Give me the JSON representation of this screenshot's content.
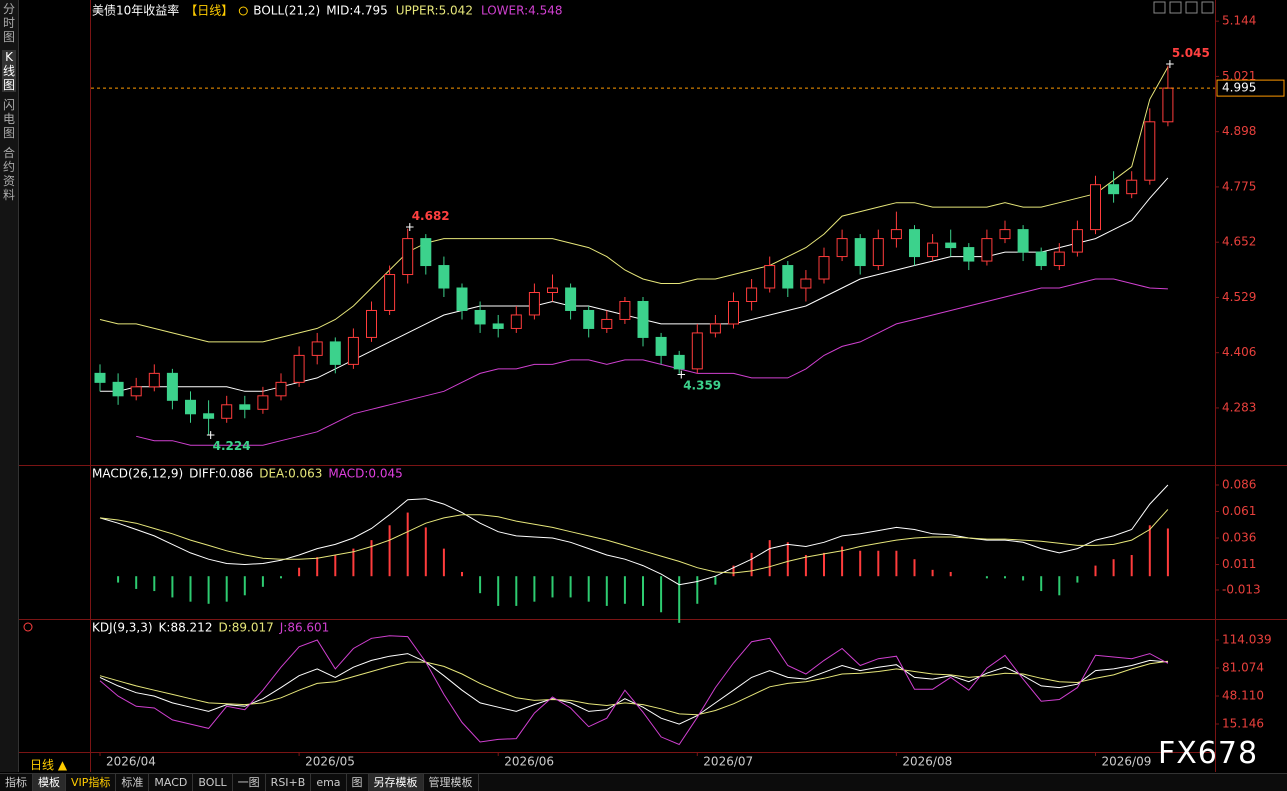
{
  "ui": {
    "sidebar": [
      "分时图",
      "K线图",
      "闪电图",
      "合约资料"
    ],
    "period": "日线 ▲",
    "toolbar": [
      "指标",
      "模板",
      "VIP指标",
      "标准",
      "MACD",
      "BOLL",
      "一图",
      "RSI+B",
      "ema",
      "图",
      "另存模板",
      "管理模板"
    ],
    "watermark": "FX678"
  },
  "chart_data": [
    {
      "type": "candlestick",
      "title": "美债10年收益率",
      "period_label": "【日线】",
      "indicator": "BOLL(21,2)",
      "axis_color": "#e8403c",
      "up_color": "#ff3c3c",
      "down_color": "#3cd28c",
      "ylim": [
        4.156,
        5.18
      ],
      "yticks": [
        5.144,
        5.021,
        4.898,
        4.775,
        4.652,
        4.529,
        4.406,
        4.283
      ],
      "last_price": 4.995,
      "last_price_color": "#ff9900",
      "annotations": [
        5.045,
        4.682,
        4.224,
        4.359
      ],
      "annotation_up_color": "#ff4040",
      "annotation_down_color": "#3cd28c",
      "categories": [
        "2026/04",
        null,
        null,
        null,
        null,
        null,
        null,
        null,
        null,
        null,
        null,
        "2026/05",
        null,
        null,
        null,
        null,
        null,
        null,
        null,
        null,
        null,
        null,
        "2026/06",
        null,
        null,
        null,
        null,
        null,
        null,
        null,
        null,
        null,
        null,
        "2026/07",
        null,
        null,
        null,
        null,
        null,
        null,
        null,
        null,
        null,
        null,
        "2026/08",
        null,
        null,
        null,
        null,
        null,
        null,
        null,
        null,
        null,
        null,
        "2026/09",
        null,
        null,
        null,
        null
      ],
      "ohlc": [
        [
          4.36,
          4.38,
          4.32,
          4.34
        ],
        [
          4.34,
          4.36,
          4.29,
          4.31
        ],
        [
          4.31,
          4.35,
          4.3,
          4.33
        ],
        [
          4.33,
          4.38,
          4.32,
          4.36
        ],
        [
          4.36,
          4.37,
          4.28,
          4.3
        ],
        [
          4.3,
          4.32,
          4.25,
          4.27
        ],
        [
          4.27,
          4.3,
          4.224,
          4.26
        ],
        [
          4.26,
          4.31,
          4.25,
          4.29
        ],
        [
          4.29,
          4.31,
          4.26,
          4.28
        ],
        [
          4.28,
          4.33,
          4.27,
          4.31
        ],
        [
          4.31,
          4.36,
          4.3,
          4.34
        ],
        [
          4.34,
          4.42,
          4.33,
          4.4
        ],
        [
          4.4,
          4.45,
          4.38,
          4.43
        ],
        [
          4.43,
          4.44,
          4.36,
          4.38
        ],
        [
          4.38,
          4.46,
          4.37,
          4.44
        ],
        [
          4.44,
          4.52,
          4.43,
          4.5
        ],
        [
          4.5,
          4.6,
          4.49,
          4.58
        ],
        [
          4.58,
          4.682,
          4.56,
          4.66
        ],
        [
          4.66,
          4.67,
          4.58,
          4.6
        ],
        [
          4.6,
          4.62,
          4.53,
          4.55
        ],
        [
          4.55,
          4.56,
          4.48,
          4.5
        ],
        [
          4.5,
          4.52,
          4.45,
          4.47
        ],
        [
          4.47,
          4.49,
          4.44,
          4.46
        ],
        [
          4.46,
          4.51,
          4.45,
          4.49
        ],
        [
          4.49,
          4.56,
          4.48,
          4.54
        ],
        [
          4.54,
          4.58,
          4.52,
          4.55
        ],
        [
          4.55,
          4.56,
          4.48,
          4.5
        ],
        [
          4.5,
          4.51,
          4.44,
          4.46
        ],
        [
          4.46,
          4.5,
          4.45,
          4.48
        ],
        [
          4.48,
          4.53,
          4.47,
          4.52
        ],
        [
          4.52,
          4.53,
          4.42,
          4.44
        ],
        [
          4.44,
          4.45,
          4.38,
          4.4
        ],
        [
          4.4,
          4.41,
          4.359,
          4.37
        ],
        [
          4.37,
          4.47,
          4.36,
          4.45
        ],
        [
          4.45,
          4.49,
          4.44,
          4.47
        ],
        [
          4.47,
          4.54,
          4.46,
          4.52
        ],
        [
          4.52,
          4.57,
          4.5,
          4.55
        ],
        [
          4.55,
          4.62,
          4.54,
          4.6
        ],
        [
          4.6,
          4.61,
          4.53,
          4.55
        ],
        [
          4.55,
          4.59,
          4.52,
          4.57
        ],
        [
          4.57,
          4.64,
          4.56,
          4.62
        ],
        [
          4.62,
          4.68,
          4.61,
          4.66
        ],
        [
          4.66,
          4.67,
          4.58,
          4.6
        ],
        [
          4.6,
          4.68,
          4.59,
          4.66
        ],
        [
          4.66,
          4.72,
          4.64,
          4.68
        ],
        [
          4.68,
          4.69,
          4.6,
          4.62
        ],
        [
          4.62,
          4.67,
          4.61,
          4.65
        ],
        [
          4.65,
          4.68,
          4.62,
          4.64
        ],
        [
          4.64,
          4.65,
          4.59,
          4.61
        ],
        [
          4.61,
          4.68,
          4.6,
          4.66
        ],
        [
          4.66,
          4.7,
          4.65,
          4.68
        ],
        [
          4.68,
          4.69,
          4.61,
          4.63
        ],
        [
          4.63,
          4.64,
          4.59,
          4.6
        ],
        [
          4.6,
          4.65,
          4.59,
          4.63
        ],
        [
          4.63,
          4.7,
          4.62,
          4.68
        ],
        [
          4.68,
          4.8,
          4.67,
          4.78
        ],
        [
          4.78,
          4.81,
          4.74,
          4.76
        ],
        [
          4.76,
          4.81,
          4.75,
          4.79
        ],
        [
          4.79,
          4.95,
          4.78,
          4.92
        ],
        [
          4.92,
          5.045,
          4.91,
          4.995
        ]
      ],
      "series": [
        {
          "name": "MID:4.795",
          "color": "#ffffff",
          "values": [
            4.32,
            4.32,
            4.33,
            4.33,
            4.33,
            4.33,
            4.33,
            4.33,
            4.32,
            4.32,
            4.33,
            4.34,
            4.35,
            4.37,
            4.39,
            4.41,
            4.43,
            4.45,
            4.47,
            4.49,
            4.5,
            4.51,
            4.51,
            4.51,
            4.51,
            4.52,
            4.51,
            4.51,
            4.5,
            4.49,
            4.48,
            4.47,
            4.47,
            4.47,
            4.47,
            4.47,
            4.48,
            4.49,
            4.5,
            4.51,
            4.53,
            4.55,
            4.57,
            4.58,
            4.59,
            4.6,
            4.61,
            4.62,
            4.62,
            4.62,
            4.63,
            4.63,
            4.63,
            4.64,
            4.65,
            4.66,
            4.68,
            4.7,
            4.75,
            4.795
          ]
        },
        {
          "name": "UPPER:5.042",
          "color": "#e6e67a",
          "values": [
            4.48,
            4.47,
            4.47,
            4.46,
            4.45,
            4.44,
            4.43,
            4.43,
            4.43,
            4.43,
            4.44,
            4.45,
            4.46,
            4.48,
            4.51,
            4.55,
            4.59,
            4.63,
            4.65,
            4.66,
            4.66,
            4.66,
            4.66,
            4.66,
            4.66,
            4.66,
            4.65,
            4.64,
            4.62,
            4.59,
            4.57,
            4.56,
            4.56,
            4.57,
            4.57,
            4.58,
            4.59,
            4.6,
            4.62,
            4.64,
            4.67,
            4.71,
            4.72,
            4.73,
            4.74,
            4.74,
            4.73,
            4.73,
            4.73,
            4.73,
            4.74,
            4.73,
            4.73,
            4.74,
            4.75,
            4.76,
            4.79,
            4.82,
            4.97,
            5.042
          ]
        },
        {
          "name": "LOWER:4.548",
          "color": "#d040d0",
          "values": [
            null,
            null,
            4.22,
            4.21,
            4.21,
            4.2,
            4.2,
            4.2,
            4.2,
            4.2,
            4.21,
            4.22,
            4.23,
            4.25,
            4.27,
            4.28,
            4.29,
            4.3,
            4.31,
            4.32,
            4.34,
            4.36,
            4.37,
            4.37,
            4.38,
            4.38,
            4.39,
            4.39,
            4.38,
            4.39,
            4.39,
            4.38,
            4.37,
            4.36,
            4.36,
            4.36,
            4.35,
            4.35,
            4.35,
            4.37,
            4.4,
            4.42,
            4.43,
            4.45,
            4.47,
            4.48,
            4.49,
            4.5,
            4.51,
            4.52,
            4.53,
            4.54,
            4.55,
            4.55,
            4.56,
            4.57,
            4.57,
            4.56,
            4.55,
            4.548
          ]
        }
      ]
    },
    {
      "type": "indicator",
      "title": "MACD(26,12,9)",
      "axis_color": "#e8403c",
      "ylim": [
        -0.0394,
        0.1039
      ],
      "yticks": [
        0.086,
        0.061,
        0.036,
        0.011,
        -0.013
      ],
      "series": [
        {
          "name": "DIFF:0.086",
          "color": "#ffffff",
          "values": [
            0.055,
            0.05,
            0.044,
            0.038,
            0.03,
            0.022,
            0.016,
            0.012,
            0.011,
            0.012,
            0.015,
            0.02,
            0.026,
            0.03,
            0.036,
            0.045,
            0.058,
            0.072,
            0.073,
            0.068,
            0.06,
            0.05,
            0.042,
            0.038,
            0.037,
            0.036,
            0.032,
            0.026,
            0.02,
            0.016,
            0.01,
            0.002,
            -0.008,
            -0.005,
            0.0,
            0.008,
            0.016,
            0.026,
            0.03,
            0.028,
            0.032,
            0.038,
            0.04,
            0.043,
            0.046,
            0.044,
            0.04,
            0.039,
            0.036,
            0.034,
            0.034,
            0.032,
            0.026,
            0.022,
            0.026,
            0.034,
            0.038,
            0.044,
            0.068,
            0.086
          ]
        },
        {
          "name": "DEA:0.063",
          "color": "#e6e67a",
          "values": [
            0.055,
            0.053,
            0.05,
            0.045,
            0.04,
            0.034,
            0.029,
            0.024,
            0.02,
            0.017,
            0.016,
            0.016,
            0.017,
            0.02,
            0.023,
            0.028,
            0.034,
            0.042,
            0.05,
            0.055,
            0.058,
            0.058,
            0.056,
            0.052,
            0.049,
            0.046,
            0.042,
            0.038,
            0.034,
            0.029,
            0.024,
            0.019,
            0.014,
            0.008,
            0.004,
            0.003,
            0.005,
            0.009,
            0.014,
            0.018,
            0.021,
            0.024,
            0.028,
            0.031,
            0.034,
            0.036,
            0.037,
            0.037,
            0.036,
            0.035,
            0.035,
            0.034,
            0.033,
            0.031,
            0.029,
            0.029,
            0.03,
            0.034,
            0.044,
            0.063
          ]
        },
        {
          "name": "MACD:0.045",
          "color": "#e040e0",
          "type": "bar",
          "up_color": "#ff3c3c",
          "down_color": "#2ecc71",
          "values": [
            0,
            -0.006,
            -0.012,
            -0.014,
            -0.02,
            -0.024,
            -0.026,
            -0.024,
            -0.018,
            -0.01,
            -0.002,
            0.008,
            0.018,
            0.02,
            0.026,
            0.034,
            0.048,
            0.06,
            0.046,
            0.026,
            0.004,
            -0.016,
            -0.028,
            -0.028,
            -0.024,
            -0.02,
            -0.02,
            -0.024,
            -0.028,
            -0.026,
            -0.028,
            -0.034,
            -0.044,
            -0.026,
            -0.008,
            0.01,
            0.022,
            0.034,
            0.032,
            0.02,
            0.022,
            0.028,
            0.024,
            0.024,
            0.024,
            0.016,
            0.006,
            0.004,
            0,
            -0.002,
            -0.002,
            -0.004,
            -0.014,
            -0.018,
            -0.006,
            0.01,
            0.016,
            0.02,
            0.048,
            0.045
          ]
        }
      ]
    },
    {
      "type": "indicator",
      "title": "KDJ(9,3,3)",
      "axis_color": "#e8403c",
      "ylim": [
        -17.8,
        137.6
      ],
      "yticks": [
        114.039,
        81.074,
        {
          "value": 48.11,
          "label": "48.110"
        },
        15.146
      ],
      "series": [
        {
          "name": "K:88.212",
          "color": "#ffffff",
          "values": [
            70,
            60,
            52,
            48,
            40,
            35,
            30,
            38,
            36,
            45,
            58,
            72,
            80,
            70,
            82,
            90,
            95,
            98,
            88,
            72,
            55,
            40,
            35,
            30,
            38,
            45,
            40,
            30,
            32,
            45,
            35,
            22,
            15,
            25,
            40,
            55,
            70,
            78,
            70,
            68,
            76,
            84,
            78,
            82,
            85,
            70,
            68,
            72,
            65,
            75,
            82,
            72,
            60,
            58,
            62,
            78,
            80,
            84,
            90,
            88.212
          ]
        },
        {
          "name": "D:89.017",
          "color": "#e6e67a",
          "values": [
            72,
            66,
            60,
            55,
            50,
            45,
            40,
            39,
            38,
            40,
            46,
            55,
            63,
            65,
            71,
            77,
            83,
            88,
            88,
            83,
            74,
            63,
            54,
            46,
            43,
            44,
            43,
            39,
            37,
            40,
            38,
            33,
            27,
            26,
            31,
            39,
            49,
            59,
            63,
            65,
            69,
            74,
            75,
            77,
            80,
            77,
            74,
            73,
            70,
            72,
            75,
            74,
            69,
            65,
            64,
            69,
            73,
            80,
            86,
            89.017
          ]
        },
        {
          "name": "J:86.601",
          "color": "#d040d0",
          "values": [
            66,
            48,
            36,
            34,
            20,
            15,
            10,
            36,
            32,
            55,
            82,
            106,
            114,
            80,
            104,
            116,
            119,
            118,
            88,
            50,
            17,
            -6,
            -3,
            -2,
            28,
            47,
            34,
            12,
            22,
            55,
            29,
            0,
            -9,
            23,
            58,
            87,
            112,
            116,
            84,
            74,
            90,
            104,
            84,
            92,
            95,
            56,
            56,
            70,
            55,
            81,
            96,
            68,
            42,
            44,
            58,
            96,
            94,
            92,
            98,
            86.601
          ]
        }
      ]
    }
  ]
}
